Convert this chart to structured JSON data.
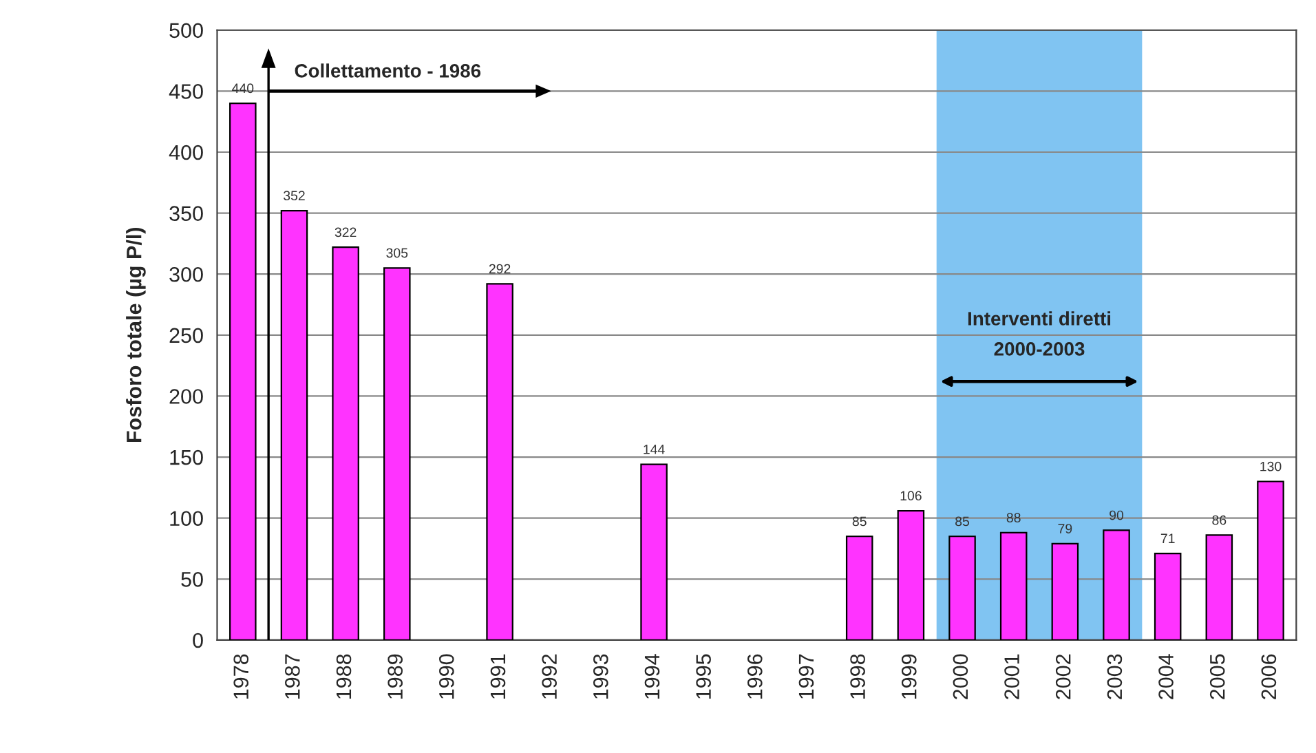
{
  "chart_data": {
    "type": "bar",
    "ylabel": "Fosforo totale (µg P/l)",
    "categories": [
      "1978",
      "1987",
      "1988",
      "1989",
      "1990",
      "1991",
      "1992",
      "1993",
      "1994",
      "1995",
      "1996",
      "1997",
      "1998",
      "1999",
      "2000",
      "2001",
      "2002",
      "2003",
      "2004",
      "2005",
      "2006"
    ],
    "values": [
      440,
      352,
      322,
      305,
      null,
      292,
      null,
      null,
      144,
      null,
      null,
      null,
      85,
      106,
      85,
      88,
      79,
      90,
      71,
      86,
      130
    ],
    "color": "#ff33ff",
    "ylim": [
      0,
      500
    ],
    "yticks": [
      0,
      50,
      100,
      150,
      200,
      250,
      300,
      350,
      400,
      450,
      500
    ],
    "grid": "y",
    "data_labels": true,
    "bands": [
      {
        "axis": "x",
        "from": "2000",
        "to": "2003",
        "label": "Interventi diretti\n2000-2003",
        "color": "#80c4f2"
      }
    ],
    "annotations": [
      "Collettamento - 1986"
    ]
  }
}
